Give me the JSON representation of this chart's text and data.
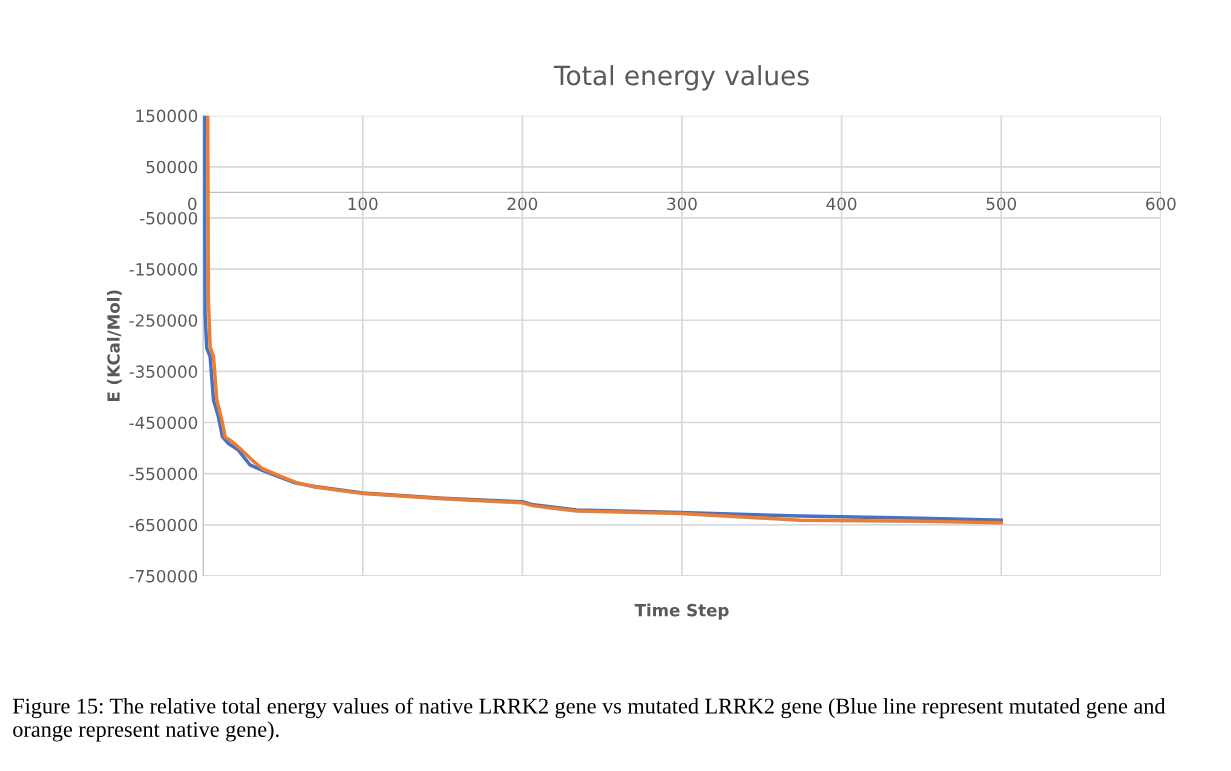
{
  "chart_data": {
    "type": "line",
    "title": "Total energy values",
    "xlabel": "Time Step",
    "ylabel": "E (KCal/Mol)",
    "xlim": [
      0,
      600
    ],
    "xticks": [
      0,
      100,
      200,
      300,
      400,
      500,
      600
    ],
    "ylim": [
      -750000,
      150000
    ],
    "yticks": [
      150000,
      50000,
      -50000,
      -150000,
      -250000,
      -350000,
      -450000,
      -550000,
      -650000,
      -750000
    ],
    "grid": true,
    "legend": false,
    "marker": "none",
    "line_style": "solid",
    "series": [
      {
        "color": "#4472c4",
        "x": [
          0.8,
          1.2,
          2.3,
          4.4,
          6.5,
          9.6,
          12.1,
          15.9,
          22.1,
          29.4,
          36.8,
          47.2,
          57.6,
          70,
          100,
          150,
          200,
          207,
          234,
          299,
          374,
          450,
          500
        ],
        "values": [
          150000,
          -236000,
          -305000,
          -321000,
          -406000,
          -439000,
          -478000,
          -491000,
          -504000,
          -533000,
          -543000,
          -556000,
          -568000,
          -575000,
          -588000,
          -598000,
          -605000,
          -611000,
          -621000,
          -626000,
          -633000,
          -637000,
          -641000
        ]
      },
      {
        "color": "#ed7d31",
        "x": [
          2.9,
          3.3,
          4.4,
          6.5,
          8.6,
          11.7,
          13.8,
          18,
          24.2,
          30.5,
          37,
          47.5,
          58,
          70,
          100,
          150,
          200,
          207,
          234,
          299,
          374,
          450,
          500
        ],
        "values": [
          150000,
          -210000,
          -302000,
          -321000,
          -406000,
          -445000,
          -478000,
          -487000,
          -504000,
          -523000,
          -540000,
          -554000,
          -567000,
          -576000,
          -589000,
          -599000,
          -607000,
          -613000,
          -623000,
          -628000,
          -641000,
          -643000,
          -646000
        ]
      }
    ],
    "annotations": [
      "Figure 15: The relative total energy values of native LRRK2 gene vs mutated LRRK2 gene (Blue line represent mutated gene and orange represent native gene)."
    ]
  }
}
